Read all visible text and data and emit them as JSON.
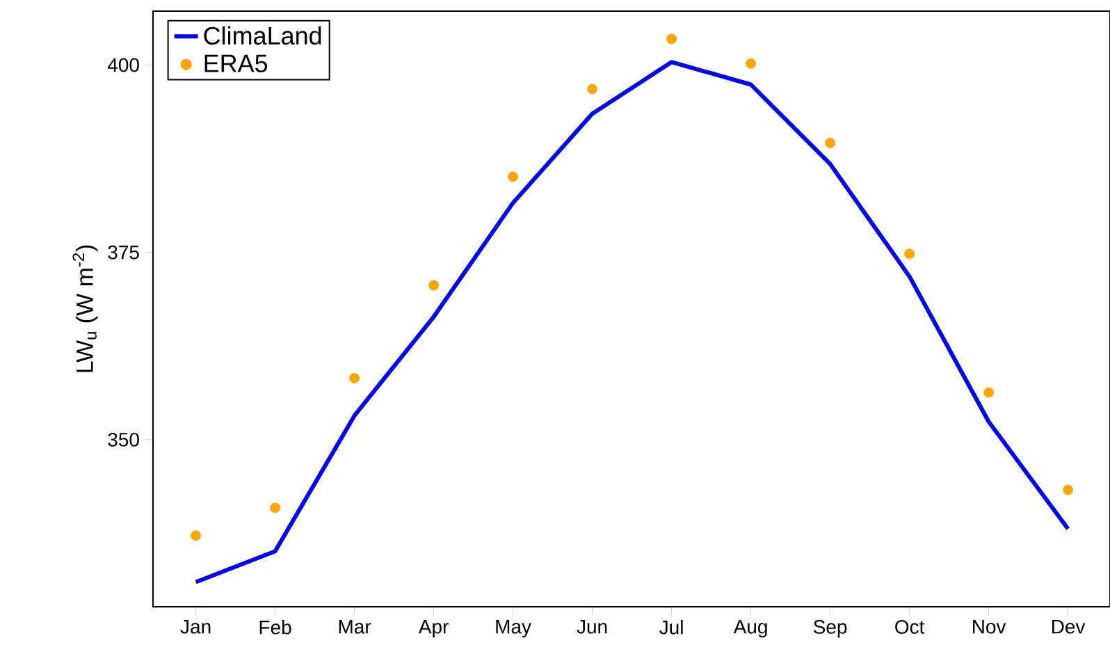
{
  "chart_data": {
    "type": "line",
    "ylabel": "LW$_{u}$ (W m$^{-2}$)",
    "categories": [
      "Jan",
      "Feb",
      "Mar",
      "Apr",
      "May",
      "Jun",
      "Jul",
      "Aug",
      "Sep",
      "Oct",
      "Nov",
      "Dev"
    ],
    "series": [
      {
        "name": "ClimaLand",
        "color": "#0000ff",
        "marker": "none",
        "values": [
          331.0,
          335.1,
          353.2,
          366.4,
          381.6,
          393.5,
          400.4,
          397.4,
          386.8,
          371.8,
          352.4,
          338.1
        ]
      },
      {
        "name": "ERA5",
        "type": "scatter",
        "color": "#ffa500",
        "marker": "circle",
        "values": [
          337.2,
          340.9,
          358.2,
          370.6,
          385.1,
          396.8,
          403.5,
          400.2,
          389.6,
          374.8,
          356.3,
          343.3
        ]
      }
    ],
    "ylim": [
      327.7,
      407.2
    ],
    "yticks": [
      350,
      375,
      400
    ],
    "grid": false,
    "legend": "top left"
  }
}
